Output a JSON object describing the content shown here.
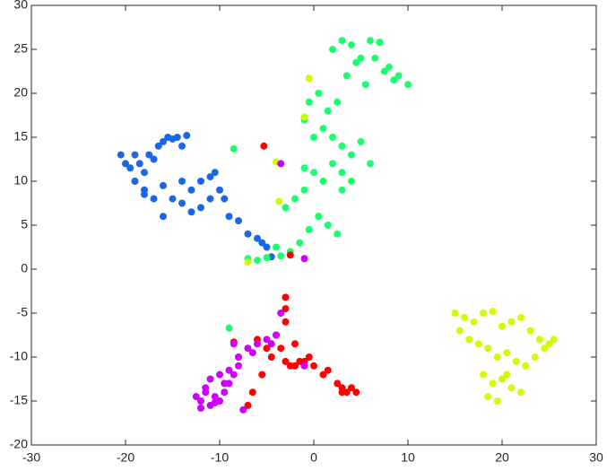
{
  "chart_data": {
    "type": "scatter",
    "xlim": [
      -30,
      30
    ],
    "xticks": [
      -30,
      -20,
      -10,
      0,
      10,
      20,
      30
    ],
    "ylim": [
      -20,
      30
    ],
    "yticks": [
      -20,
      -15,
      -10,
      -5,
      0,
      5,
      10,
      15,
      20,
      25,
      30
    ],
    "grid": false,
    "series": [
      {
        "color": "#1a66e6",
        "x": [
          -20.5,
          -20,
          -19.5,
          -19,
          -18.5,
          -18,
          -17.5,
          -17,
          -16.5,
          -16,
          -15.5,
          -15,
          -14.5,
          -14,
          -13.5,
          -19,
          -18,
          -17,
          -16,
          -15,
          -14,
          -13,
          -12,
          -11,
          -10.5,
          -10,
          -9.5,
          -11,
          -12,
          -13,
          -14,
          -16,
          -18,
          -9,
          -8,
          -7,
          -6,
          -5.5,
          -5,
          -4.5
        ],
        "y": [
          13,
          12,
          11.5,
          13,
          12,
          11,
          13,
          12.5,
          14,
          14.5,
          15,
          14.8,
          15,
          14,
          15.2,
          10,
          9,
          8,
          9.5,
          8,
          10,
          9,
          10,
          10.5,
          11,
          9,
          8,
          8,
          7,
          6.5,
          7.5,
          6,
          8.5,
          6,
          5.5,
          4,
          3.5,
          3,
          2.5,
          1.4
        ]
      },
      {
        "color": "#1aff6e",
        "x": [
          2,
          3,
          4,
          5,
          6,
          7,
          8,
          9,
          10,
          3.5,
          4.5,
          5.5,
          6.5,
          7.5,
          8.5,
          2.5,
          1.5,
          0.5,
          -0.5,
          -1,
          0,
          1,
          2,
          3,
          4,
          5,
          6,
          2,
          3,
          4,
          1,
          0,
          -1,
          -2,
          -3,
          0.5,
          1.5,
          2.5,
          -0.5,
          -1.5,
          -2.5,
          -3.5,
          -4,
          -5,
          -6,
          -7,
          -8.5,
          -9,
          -1,
          3
        ],
        "y": [
          25,
          26,
          25.5,
          24,
          26,
          25.8,
          23,
          22,
          21,
          22,
          23.5,
          21,
          24,
          22.5,
          21.5,
          19,
          18,
          20,
          19,
          17,
          15,
          16,
          15,
          14,
          13,
          14.5,
          12,
          12,
          11,
          10,
          10,
          11,
          9,
          8,
          7,
          6,
          5,
          4,
          4.5,
          3,
          2,
          1.5,
          2.5,
          1.3,
          1,
          1.2,
          13.7,
          -6.7,
          11.5,
          9
        ]
      },
      {
        "color": "#ccff00",
        "x": [
          15,
          16,
          17,
          18,
          19,
          20,
          21,
          22,
          23,
          24,
          25,
          25.5,
          15.5,
          16.5,
          17.5,
          18.5,
          19.5,
          20.5,
          21.5,
          22.5,
          23.5,
          24.5,
          18,
          19,
          20,
          21,
          22,
          18.5,
          19.5,
          20.5,
          -7,
          -1,
          -4,
          -3.7,
          -0.5
        ],
        "y": [
          -5,
          -5.5,
          -6,
          -5,
          -4.8,
          -6.5,
          -6,
          -5.5,
          -7,
          -8,
          -8.5,
          -8,
          -7,
          -8,
          -8.5,
          -9,
          -10,
          -9.5,
          -10.5,
          -11,
          -10,
          -9,
          -12,
          -13,
          -12.5,
          -13.5,
          -14,
          -14.5,
          -15,
          -12,
          0.8,
          17.3,
          12.2,
          7.7,
          21.7
        ]
      },
      {
        "color": "#ff0000",
        "x": [
          -5.3,
          -3,
          -2,
          -1,
          -0.5,
          0,
          1,
          1.5,
          2.5,
          3,
          3.5,
          4,
          4.5,
          3,
          -6,
          -5,
          -4,
          -3,
          -2,
          -4.5,
          -3.5,
          -2.5,
          -1.5,
          -5.5,
          -6.5,
          -7,
          -8.5,
          -3,
          -3,
          -2.5
        ],
        "y": [
          14,
          -10.5,
          -11,
          -10.5,
          -10,
          -11,
          -12,
          -11.5,
          -13,
          -13.5,
          -14,
          -13.5,
          -14,
          -14,
          -8,
          -9,
          -7.5,
          -6,
          -8.5,
          -10,
          -9,
          -11,
          -10.5,
          -12,
          -14,
          -15.5,
          -8.3,
          -3.2,
          -4.5,
          1.6
        ]
      },
      {
        "color": "#cc00ff",
        "x": [
          -12.5,
          -12,
          -11.5,
          -11,
          -10.5,
          -10,
          -9.5,
          -9,
          -8.5,
          -8,
          -7.5,
          -11,
          -10,
          -9,
          -8,
          -12,
          -11.5,
          -10.5,
          -9.5,
          -8.5,
          -7,
          -6,
          -5,
          -4,
          -3.5,
          -1,
          -1,
          -3.5,
          -6.5,
          -4.5
        ],
        "y": [
          -14.5,
          -15,
          -14,
          -15.5,
          -14.5,
          -15,
          -14,
          -13,
          -12,
          -11,
          -16,
          -12.5,
          -12,
          -11.5,
          -10,
          -15.8,
          -13.5,
          -15.2,
          -13,
          -8.5,
          -9,
          -8.5,
          -8,
          -7.5,
          -5,
          -11,
          1.2,
          12,
          -9.5,
          -8.5
        ]
      }
    ]
  }
}
